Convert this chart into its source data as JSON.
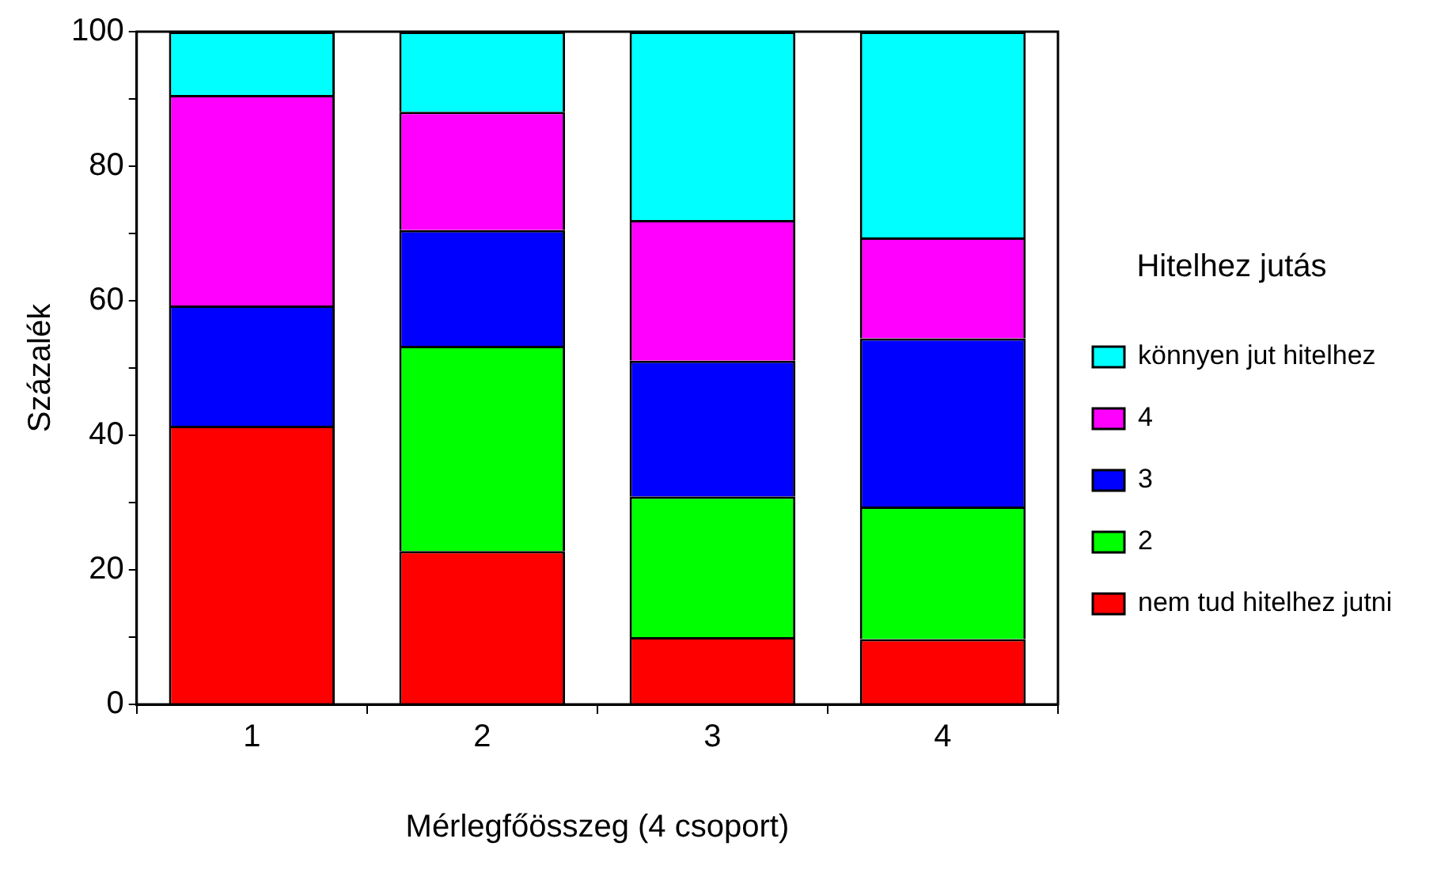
{
  "chart_data": {
    "type": "bar",
    "stacked": true,
    "xlabel": "Mérlegfőösszeg (4 csoport)",
    "ylabel": "Százalék",
    "legend_title": "Hitelhez jutás",
    "legend": "right",
    "grid": false,
    "categories": [
      "1",
      "2",
      "3",
      "4"
    ],
    "series": [
      {
        "name": "nem tud hitelhez jutni",
        "color": "#ff0000",
        "values": [
          41.4,
          22.8,
          10.0,
          9.7
        ]
      },
      {
        "name": "2",
        "color": "#00ff00",
        "values": [
          0,
          30.5,
          20.9,
          19.7
        ]
      },
      {
        "name": "3",
        "color": "#0000ff",
        "values": [
          17.9,
          17.2,
          20.2,
          25.0
        ]
      },
      {
        "name": "4",
        "color": "#ff00ff",
        "values": [
          31.3,
          17.6,
          20.9,
          15.0
        ]
      },
      {
        "name": "könnyen jut hitelhez",
        "color": "#00ffff",
        "values": [
          9.4,
          11.9,
          28.0,
          30.6
        ]
      }
    ],
    "ylim": [
      0,
      100
    ],
    "yticks": [
      0,
      {
        "value": 10,
        "label": null
      },
      20,
      {
        "value": 30,
        "label": null
      },
      40,
      {
        "value": 50,
        "label": null
      },
      60,
      {
        "value": 70,
        "label": null
      },
      80,
      {
        "value": 90,
        "label": null
      },
      100
    ]
  }
}
